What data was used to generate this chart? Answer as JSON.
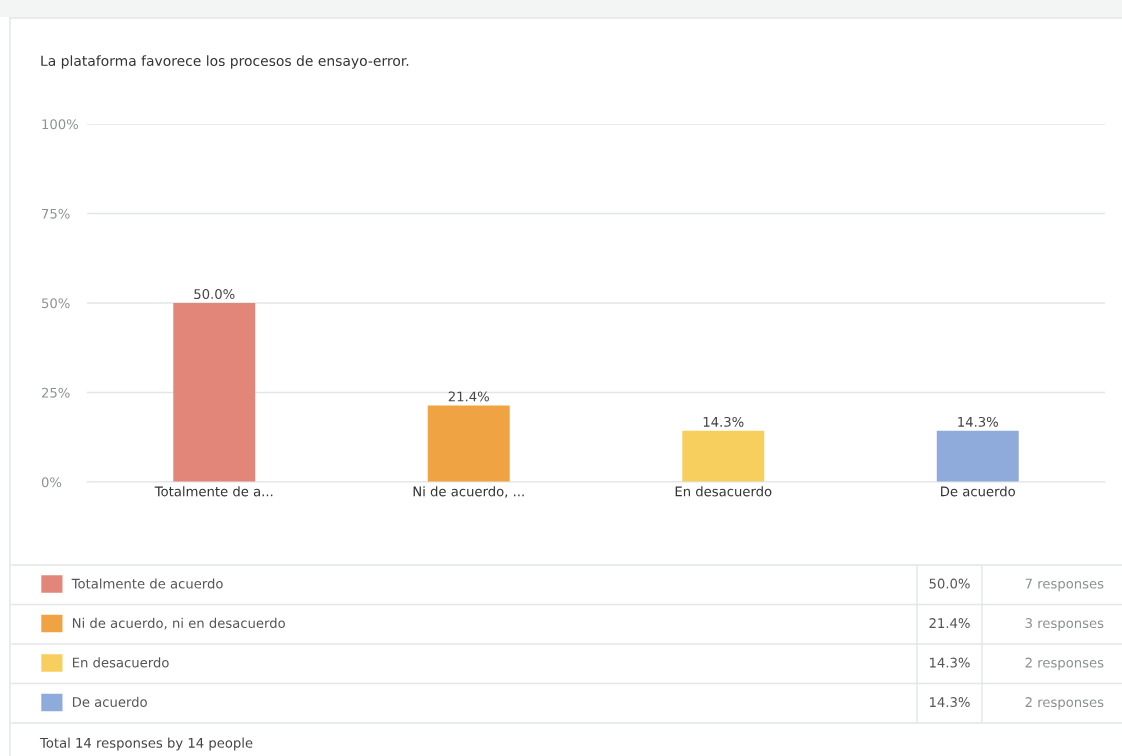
{
  "chart_data": {
    "type": "bar",
    "title": "La plataforma favorece los procesos de ensayo-error.",
    "categories": [
      "Totalmente de a...",
      "Ni de acuerdo, ...",
      "En desacuerdo",
      "De acuerdo"
    ],
    "series": [
      {
        "name": "Totalmente de acuerdo",
        "color": "#e3867a",
        "values": [
          50.0,
          null,
          null,
          null
        ],
        "value_labels": [
          "50.0%",
          null,
          null,
          null
        ]
      },
      {
        "name": "Ni de acuerdo, ni en desacuerdo",
        "color": "#f0a343",
        "values": [
          null,
          21.4,
          null,
          null
        ],
        "value_labels": [
          null,
          "21.4%",
          null,
          null
        ]
      },
      {
        "name": "En desacuerdo",
        "color": "#f7cf5f",
        "values": [
          null,
          null,
          14.3,
          null
        ],
        "value_labels": [
          null,
          null,
          "14.3%",
          null
        ]
      },
      {
        "name": "De acuerdo",
        "color": "#8eabdb",
        "values": [
          null,
          null,
          null,
          14.3
        ],
        "value_labels": [
          null,
          null,
          null,
          "14.3%"
        ]
      }
    ],
    "ylim": [
      0,
      100
    ],
    "yticks": [
      {
        "value": 0,
        "label": "0%"
      },
      {
        "value": 25,
        "label": "25%"
      },
      {
        "value": 50,
        "label": "50%"
      },
      {
        "value": 75,
        "label": "75%"
      },
      {
        "value": 100,
        "label": "100%"
      }
    ],
    "grid": "y",
    "legend": "bottom",
    "annotations": [
      "7 responses",
      "3 responses",
      "2 responses",
      "2 responses",
      "Total 14 responses by 14 people"
    ]
  }
}
